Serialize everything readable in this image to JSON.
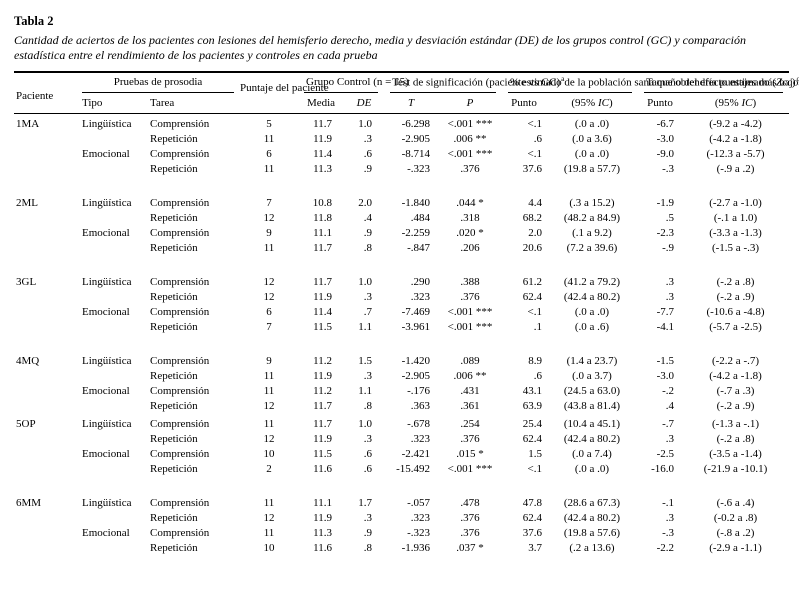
{
  "table": {
    "number_label": "Tabla 2",
    "caption": "Cantidad de aciertos de los pacientes con lesiones del hemisferio derecho, media y desviación estándar (DE) de los grupos control (GC) y comparación estadística entre el rendimiento de los pacientes y controles en cada prueba",
    "header": {
      "paciente": "Paciente",
      "pruebas": "Pruebas de prosodia",
      "tipo": "Tipo",
      "tarea": "Tarea",
      "puntaje": "Puntaje del paciente",
      "grupo_control": "Grupo Control (n = 15)",
      "media": "Media",
      "de": "DE",
      "test_sig": "Test de significación (paciente vs GC)",
      "test_sig_sup": "a",
      "t": "T",
      "p": "P",
      "pct_estimado": "% estimado de la población sana que obtendría puntajes más bajos que el paciente",
      "pct_estimado_sup": "b",
      "tamano_prefix": "Tamaño del efecto estimado (",
      "tamano_z": "Zcc",
      "tamano_suffix": ")",
      "tamano_sup": "c",
      "punto": "Punto",
      "ic_open": "(95% ",
      "ic_italic": "IC",
      "ic_close": ")"
    },
    "patients": [
      {
        "id": "1MA",
        "gap_after": true,
        "rows": [
          {
            "tipo": "Lingüística",
            "tarea": "Comprensión",
            "puntaje": "5",
            "media": "11.7",
            "de": "1.0",
            "t": "-6.298",
            "p": "<.001 ***",
            "punto_pct": "<.1",
            "ic_pct": "(.0 a .0)",
            "punto_z": "-6.7",
            "ic_z": "(-9.2 a -4.2)"
          },
          {
            "tipo": "",
            "tarea": "Repetición",
            "puntaje": "11",
            "media": "11.9",
            "de": ".3",
            "t": "-2.905",
            "p": ".006 **",
            "punto_pct": ".6",
            "ic_pct": "(.0 a 3.6)",
            "punto_z": "-3.0",
            "ic_z": "(-4.2 a -1.8)"
          },
          {
            "tipo": "Emocional",
            "tarea": "Comprensión",
            "puntaje": "6",
            "media": "11.4",
            "de": ".6",
            "t": "-8.714",
            "p": "<.001 ***",
            "punto_pct": "<.1",
            "ic_pct": "(.0 a .0)",
            "punto_z": "-9.0",
            "ic_z": "(-12.3 a -5.7)"
          },
          {
            "tipo": "",
            "tarea": "Repetición",
            "puntaje": "11",
            "media": "11.3",
            "de": ".9",
            "t": "-.323",
            "p": ".376",
            "punto_pct": "37.6",
            "ic_pct": "(19.8 a 57.7)",
            "punto_z": "-.3",
            "ic_z": "(-.9 a .2)"
          }
        ]
      },
      {
        "id": "2ML",
        "gap_after": true,
        "rows": [
          {
            "tipo": "Lingüística",
            "tarea": "Comprensión",
            "puntaje": "7",
            "media": "10.8",
            "de": "2.0",
            "t": "-1.840",
            "p": ".044 *",
            "punto_pct": "4.4",
            "ic_pct": "(.3 a 15.2)",
            "punto_z": "-1.9",
            "ic_z": "(-2.7 a -1.0)"
          },
          {
            "tipo": "",
            "tarea": "Repetición",
            "puntaje": "12",
            "media": "11.8",
            "de": ".4",
            "t": ".484",
            "p": ".318",
            "punto_pct": "68.2",
            "ic_pct": "(48.2 a 84.9)",
            "punto_z": ".5",
            "ic_z": "(-.1 a 1.0)"
          },
          {
            "tipo": "Emocional",
            "tarea": "Comprensión",
            "puntaje": "9",
            "media": "11.1",
            "de": ".9",
            "t": "-2.259",
            "p": ".020 *",
            "punto_pct": "2.0",
            "ic_pct": "(.1 a 9.2)",
            "punto_z": "-2.3",
            "ic_z": "(-3.3 a -1.3)"
          },
          {
            "tipo": "",
            "tarea": "Repetición",
            "puntaje": "11",
            "media": "11.7",
            "de": ".8",
            "t": "-.847",
            "p": ".206",
            "punto_pct": "20.6",
            "ic_pct": "(7.2 a 39.6)",
            "punto_z": "-.9",
            "ic_z": "(-1.5 a -.3)"
          }
        ]
      },
      {
        "id": "3GL",
        "gap_after": true,
        "rows": [
          {
            "tipo": "Lingüística",
            "tarea": "Comprensión",
            "puntaje": "12",
            "media": "11.7",
            "de": "1.0",
            "t": ".290",
            "p": ".388",
            "punto_pct": "61.2",
            "ic_pct": "(41.2 a 79.2)",
            "punto_z": ".3",
            "ic_z": "(-.2 a .8)"
          },
          {
            "tipo": "",
            "tarea": "Repetición",
            "puntaje": "12",
            "media": "11.9",
            "de": ".3",
            "t": ".323",
            "p": ".376",
            "punto_pct": "62.4",
            "ic_pct": "(42.4 a 80.2)",
            "punto_z": ".3",
            "ic_z": "(-.2 a .9)"
          },
          {
            "tipo": "Emocional",
            "tarea": "Comprensión",
            "puntaje": "6",
            "media": "11.4",
            "de": ".7",
            "t": "-7.469",
            "p": "<.001 ***",
            "punto_pct": "<.1",
            "ic_pct": "(.0 a .0)",
            "punto_z": "-7.7",
            "ic_z": "(-10.6 a -4.8)"
          },
          {
            "tipo": "",
            "tarea": "Repetición",
            "puntaje": "7",
            "media": "11.5",
            "de": "1.1",
            "t": "-3.961",
            "p": "<.001 ***",
            "punto_pct": ".1",
            "ic_pct": "(.0 a .6)",
            "punto_z": "-4.1",
            "ic_z": "(-5.7 a -2.5)"
          }
        ]
      },
      {
        "id": "4MQ",
        "gap_after": false,
        "rows": [
          {
            "tipo": "Lingüística",
            "tarea": "Comprensión",
            "puntaje": "9",
            "media": "11.2",
            "de": "1.5",
            "t": "-1.420",
            "p": ".089",
            "punto_pct": "8.9",
            "ic_pct": "(1.4 a 23.7)",
            "punto_z": "-1.5",
            "ic_z": "(-2.2 a -.7)"
          },
          {
            "tipo": "",
            "tarea": "Repetición",
            "puntaje": "11",
            "media": "11.9",
            "de": ".3",
            "t": "-2.905",
            "p": ".006 **",
            "punto_pct": ".6",
            "ic_pct": "(.0 a 3.7)",
            "punto_z": "-3.0",
            "ic_z": "(-4.2 a -1.8)"
          },
          {
            "tipo": "Emocional",
            "tarea": "Comprensión",
            "puntaje": "11",
            "media": "11.2",
            "de": "1.1",
            "t": "-.176",
            "p": ".431",
            "punto_pct": "43.1",
            "ic_pct": "(24.5 a 63.0)",
            "punto_z": "-.2",
            "ic_z": "(-.7 a .3)"
          },
          {
            "tipo": "",
            "tarea": "Repetición",
            "puntaje": "12",
            "media": "11.7",
            "de": ".8",
            "t": ".363",
            "p": ".361",
            "punto_pct": "63.9",
            "ic_pct": "(43.8 a 81.4)",
            "punto_z": ".4",
            "ic_z": "(-.2 a .9)"
          }
        ]
      },
      {
        "id": "5OP",
        "gap_after": true,
        "rows": [
          {
            "tipo": "Lingüística",
            "tarea": "Comprensión",
            "puntaje": "11",
            "media": "11.7",
            "de": "1.0",
            "t": "-.678",
            "p": ".254",
            "punto_pct": "25.4",
            "ic_pct": "(10.4 a 45.1)",
            "punto_z": "-.7",
            "ic_z": "(-1.3 a -.1)"
          },
          {
            "tipo": "",
            "tarea": "Repetición",
            "puntaje": "12",
            "media": "11.9",
            "de": ".3",
            "t": ".323",
            "p": ".376",
            "punto_pct": "62.4",
            "ic_pct": "(42.4 a 80.2)",
            "punto_z": ".3",
            "ic_z": "(-.2 a .8)"
          },
          {
            "tipo": "Emocional",
            "tarea": "Comprensión",
            "puntaje": "10",
            "media": "11.5",
            "de": ".6",
            "t": "-2.421",
            "p": ".015 *",
            "punto_pct": "1.5",
            "ic_pct": "(.0 a 7.4)",
            "punto_z": "-2.5",
            "ic_z": "(-3.5 a -1.4)"
          },
          {
            "tipo": "",
            "tarea": "Repetición",
            "puntaje": "2",
            "media": "11.6",
            "de": ".6",
            "t": "-15.492",
            "p": "<.001 ***",
            "punto_pct": "<.1",
            "ic_pct": "(.0 a .0)",
            "punto_z": "-16.0",
            "ic_z": "(-21.9 a -10.1)"
          }
        ]
      },
      {
        "id": "6MM",
        "gap_after": false,
        "rows": [
          {
            "tipo": "Lingüística",
            "tarea": "Comprensión",
            "puntaje": "11",
            "media": "11.1",
            "de": "1.7",
            "t": "-.057",
            "p": ".478",
            "punto_pct": "47.8",
            "ic_pct": "(28.6 a 67.3)",
            "punto_z": "-.1",
            "ic_z": "(-.6 a .4)"
          },
          {
            "tipo": "",
            "tarea": "Repetición",
            "puntaje": "12",
            "media": "11.9",
            "de": ".3",
            "t": ".323",
            "p": ".376",
            "punto_pct": "62.4",
            "ic_pct": "(42.4 a 80.2)",
            "punto_z": ".3",
            "ic_z": "(-0.2 a .8)"
          },
          {
            "tipo": "Emocional",
            "tarea": "Comprensión",
            "puntaje": "11",
            "media": "11.3",
            "de": ".9",
            "t": "-.323",
            "p": ".376",
            "punto_pct": "37.6",
            "ic_pct": "(19.8 a 57.6)",
            "punto_z": "-.3",
            "ic_z": "(-.8 a .2)"
          },
          {
            "tipo": "",
            "tarea": "Repetición",
            "puntaje": "10",
            "media": "11.6",
            "de": ".8",
            "t": "-1.936",
            "p": ".037 *",
            "punto_pct": "3.7",
            "ic_pct": "(.2 a 13.6)",
            "punto_z": "-2.2",
            "ic_z": "(-2.9 a -1.1)"
          }
        ]
      }
    ]
  }
}
